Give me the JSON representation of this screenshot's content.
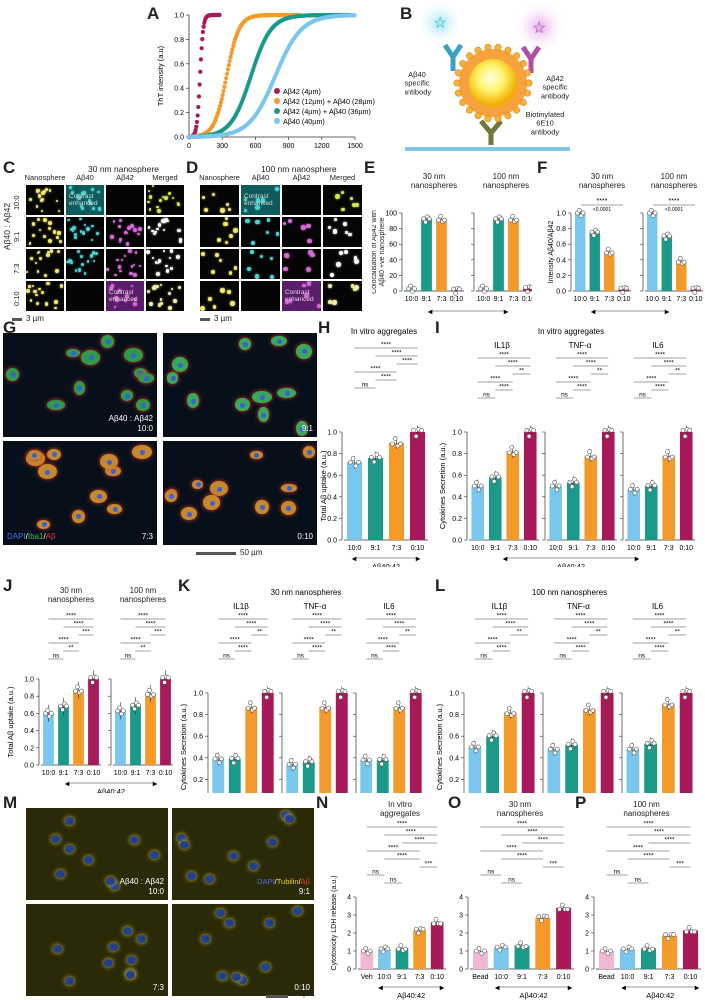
{
  "panels": {
    "A": "A",
    "B": "B",
    "C": "C",
    "D": "D",
    "E": "E",
    "F": "F",
    "G": "G",
    "H": "H",
    "I": "I",
    "J": "J",
    "K": "K",
    "L": "L",
    "M": "M",
    "N": "N",
    "O": "O",
    "P": "P"
  },
  "colors": {
    "a42": "#a8195a",
    "a12": "#f39a2b",
    "a4": "#1b9a8a",
    "a40": "#79c7ee",
    "veh": "#f2b8d2"
  },
  "chart_data": [
    {
      "id": "A",
      "type": "scatter",
      "ylabel": "ThT intensity (a.u)",
      "x_ticks": [
        "0",
        "300",
        "600",
        "900",
        "1200",
        "1500"
      ],
      "y_ticks": [
        "0.0",
        "0.2",
        "0.4",
        "0.6",
        "0.8",
        "1.0"
      ],
      "xlim": [
        0,
        1500
      ],
      "ylim": [
        0,
        1
      ],
      "legend": [
        "Aβ42 (4µm)",
        "Aβ42 (12µm) + Aβ40 (28µm)",
        "Aβ42 (4µm) + Aβ40 (36µm)",
        "Aβ40 (40µm)"
      ],
      "series": [
        {
          "name": "Aβ42 (4µm)",
          "t_half": 100,
          "k": 0.07,
          "tmax": 280,
          "color": "#a8195a"
        },
        {
          "name": "Aβ42 (12µm) + Aβ40 (28µm)",
          "t_half": 340,
          "k": 0.018,
          "tmax": 1000,
          "color": "#f39a2b"
        },
        {
          "name": "Aβ42 (4µm) + Aβ40 (36µm)",
          "t_half": 560,
          "k": 0.011,
          "tmax": 1450,
          "color": "#1b9a8a"
        },
        {
          "name": "Aβ40 (40µm)",
          "t_half": 780,
          "k": 0.0085,
          "tmax": 1500,
          "color": "#79c7ee"
        }
      ]
    }
  ],
  "B": {
    "ab40_ab": "Aβ40\nspecific\nantibody",
    "ab42_ab": "Aβ42\nspecific\nantibody",
    "biotin": "Biotinylated\n6E10\nantibody"
  },
  "C": {
    "title": "30 nm nanosphere",
    "cols": [
      "Nanosphere",
      "Aβ40",
      "Aβ42",
      "Merged"
    ],
    "rows": [
      "10:0",
      "9:1",
      "7:3",
      "0:10"
    ],
    "ylabel": "Aβ40 : Aβ42",
    "contrast": "Contrast\nenhanced",
    "scale": "3 µm"
  },
  "D": {
    "title": "100 nm nanosphere",
    "cols": [
      "Nanosphere",
      "Aβ40",
      "Aβ42",
      "Merged"
    ],
    "contrast": "Contrast\nenhanced",
    "scale": "3 µm"
  },
  "E": {
    "ylabel": "Colocalisation of Aβ42 with\nAβ40 +ve nanosphere",
    "sub1": "30 nm\nnanospheres",
    "sub2": "100 nm\nnanospheres",
    "cats": [
      "10:0",
      "9:1",
      "7:3",
      "0:10"
    ],
    "xlabel": "Aβ40:42",
    "yticks": [
      "0",
      "20",
      "40",
      "60",
      "80",
      "100"
    ],
    "values": [
      [
        3,
        92,
        92,
        1
      ],
      [
        3,
        92,
        92,
        3
      ]
    ]
  },
  "F": {
    "ylabel": "Intensity Aβ40/Aβ42",
    "sub1": "30 nm\nnanospheres",
    "sub2": "100 nm\nnanospheres",
    "cats": [
      "10:0",
      "9:1",
      "7:3",
      "0:10"
    ],
    "xlabel": "Aβ40:42",
    "yticks": [
      "0.0",
      "0.2",
      "0.4",
      "0.6",
      "0.8",
      "1.0"
    ],
    "values": [
      [
        1.0,
        0.75,
        0.5,
        0.02
      ],
      [
        1.0,
        0.7,
        0.38,
        0.02
      ]
    ],
    "stars": "****",
    "p": "<0.0001"
  },
  "G": {
    "ratio_label": "Aβ40 : Aβ42",
    "ratios": [
      "10:0",
      "9:1",
      "7:3",
      "0:10"
    ],
    "legend": [
      "DAPI",
      "/",
      "Iba1",
      "/",
      "Aβ"
    ],
    "scale": "50 µm"
  },
  "H": {
    "title": "In vitro aggregates",
    "ylabel": "Total Aβ uptake (a.u.)",
    "cats": [
      "10:0",
      "9:1",
      "7:3",
      "0:10"
    ],
    "xlabel": "Aβ40:42",
    "yticks": [
      "0.0",
      "0.2",
      "0.4",
      "0.6",
      "0.8",
      "1.0"
    ],
    "values": [
      0.72,
      0.76,
      0.9,
      1.0
    ]
  },
  "I": {
    "title": "In vitro aggregates",
    "ylabel": "Cytokines Secretion (a.u.)",
    "subs": [
      "IL1β",
      "TNF-α",
      "IL6"
    ],
    "cats": [
      "10:0",
      "9:1",
      "7:3",
      "0:10"
    ],
    "xlabel": "Aβ40:42",
    "yticks": [
      "0.0",
      "0.2",
      "0.4",
      "0.6",
      "0.8",
      "1.0"
    ],
    "values": [
      [
        0.5,
        0.58,
        0.82,
        1.0
      ],
      [
        0.5,
        0.53,
        0.78,
        1.0
      ],
      [
        0.47,
        0.5,
        0.78,
        1.0
      ]
    ]
  },
  "J": {
    "ylabel": "Total Aβ uptake (a.u.)",
    "sub1": "30 nm\nnanospheres",
    "sub2": "100 nm\nnanospheres",
    "cats": [
      "10:0",
      "9:1",
      "7:3",
      "0:10"
    ],
    "xlabel": "Aβ40:42",
    "yticks": [
      "0.0",
      "0.2",
      "0.4",
      "0.6",
      "0.8",
      "1.0"
    ],
    "values": [
      [
        0.6,
        0.68,
        0.87,
        1.0
      ],
      [
        0.63,
        0.69,
        0.83,
        1.0
      ]
    ]
  },
  "K": {
    "title": "30 nm nanospheres",
    "ylabel": "Cytokines Secretion (a.u.)",
    "subs": [
      "IL1β",
      "TNF-α",
      "IL6"
    ],
    "cats": [
      "10:0",
      "9:1",
      "7:3",
      "0:10"
    ],
    "xlabel": "Aβ40:42",
    "yticks": [
      "0.0",
      "0.2",
      "0.4",
      "0.6",
      "0.8",
      "1.0"
    ],
    "values": [
      [
        0.39,
        0.39,
        0.87,
        1.0
      ],
      [
        0.34,
        0.36,
        0.87,
        1.0
      ],
      [
        0.38,
        0.38,
        0.87,
        1.0
      ]
    ]
  },
  "L": {
    "title": "100 nm nanospheres",
    "ylabel": "Cytokines Secretion (a.u.)",
    "subs": [
      "IL1β",
      "TNF-α",
      "IL6"
    ],
    "cats": [
      "10:0",
      "9:1",
      "7:3",
      "0:10"
    ],
    "xlabel": "Aβ40:42",
    "yticks": [
      "0.0",
      "0.2",
      "0.4",
      "0.6",
      "0.8",
      "1.0"
    ],
    "values": [
      [
        0.5,
        0.6,
        0.82,
        1.0
      ],
      [
        0.48,
        0.52,
        0.85,
        1.0
      ],
      [
        0.48,
        0.53,
        0.9,
        1.0
      ]
    ]
  },
  "M": {
    "ratio_label": "Aβ40 : Aβ42",
    "ratios": [
      "10:0",
      "9:1",
      "7:3",
      "0:10"
    ],
    "legend": [
      "DAPI",
      "/",
      "Tubilin",
      "/",
      "Aβ"
    ],
    "scale": "50 µm"
  },
  "N": {
    "title": "In vitro\naggregates",
    "ylabel": "Cytotoxicity LDH release (a.u.)",
    "cats": [
      "Veh",
      "10:0",
      "9:1",
      "7:3",
      "0:10"
    ],
    "xlabel": "Aβ40:42",
    "yticks": [
      "0",
      "1",
      "2",
      "3",
      "4"
    ],
    "values": [
      1.0,
      1.1,
      1.15,
      2.15,
      2.6
    ]
  },
  "O": {
    "title": "30 nm\nnanospheres",
    "cats": [
      "Bead",
      "10:0",
      "9:1",
      "7:3",
      "0:10"
    ],
    "xlabel": "Aβ40:42",
    "values": [
      1.0,
      1.2,
      1.3,
      2.85,
      3.4
    ]
  },
  "P": {
    "title": "100 nm\nnanospheres",
    "cats": [
      "Bead",
      "10:0",
      "9:1",
      "7:3",
      "0:10"
    ],
    "xlabel": "Aβ40:42",
    "values": [
      1.0,
      1.1,
      1.15,
      1.85,
      2.15
    ]
  },
  "sig": {
    "s4": "****",
    "s3": "***",
    "s2": "**",
    "s1": "*",
    "ns": "ns",
    "p": "<0.0001"
  }
}
